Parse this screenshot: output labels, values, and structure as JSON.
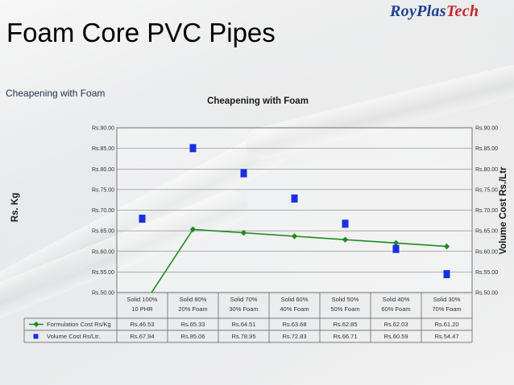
{
  "brand": {
    "name": "RoyPlas",
    "suffix": "Tech",
    "color_primary": "#1f3f8f",
    "color_accent": "#c8242b"
  },
  "slide": {
    "title": "Foam Core PVC Pipes",
    "caption": "Cheapening with Foam"
  },
  "chart_data": {
    "type": "line",
    "title": "Cheapening with Foam",
    "ylabel": "Rs. Kg",
    "y2label": "Volume Cost Rs./Ltr",
    "ylim": [
      50,
      90
    ],
    "y_ticks": [
      "Rs.90.00",
      "Rs.85.00",
      "Rs.80.00",
      "Rs.75.00",
      "Rs.70.00",
      "Rs.65.00",
      "Rs.60.00",
      "Rs.55.00",
      "Rs.50.00"
    ],
    "categories": [
      [
        "Solid 100%",
        "10 PHR"
      ],
      [
        "Solid 80%",
        "20% Foam"
      ],
      [
        "Solid 70%",
        "30% Foam"
      ],
      [
        "Solid 60%",
        "40% Foam"
      ],
      [
        "Solid 50%",
        "50% Foam"
      ],
      [
        "Solid 40%",
        "60% Foam"
      ],
      [
        "Solid 30%",
        "70% Foam"
      ]
    ],
    "series": [
      {
        "name": "Formulation Cost Rs/Kg",
        "style": "line-diamond",
        "color": "#1e8c1e",
        "values": [
          46.53,
          65.33,
          64.51,
          63.68,
          62.85,
          62.03,
          61.2
        ],
        "labels": [
          "Rs.46.53",
          "Rs.65.33",
          "Rs.64.51",
          "Rs.63.68",
          "Rs.62.85",
          "Rs.62.03",
          "Rs.61.20"
        ]
      },
      {
        "name": "Volume Cost Rs/Ltr.",
        "style": "square-marker",
        "color": "#1a2fe0",
        "values": [
          67.94,
          85.06,
          78.95,
          72.83,
          66.71,
          60.59,
          54.47
        ],
        "labels": [
          "Rs.67.94",
          "Rs.85.06",
          "Rs.78.95",
          "Rs.72.83",
          "Rs.66.71",
          "Rs.60.59",
          "Rs.54.47"
        ]
      }
    ],
    "grid": true,
    "legend": "table-below"
  }
}
